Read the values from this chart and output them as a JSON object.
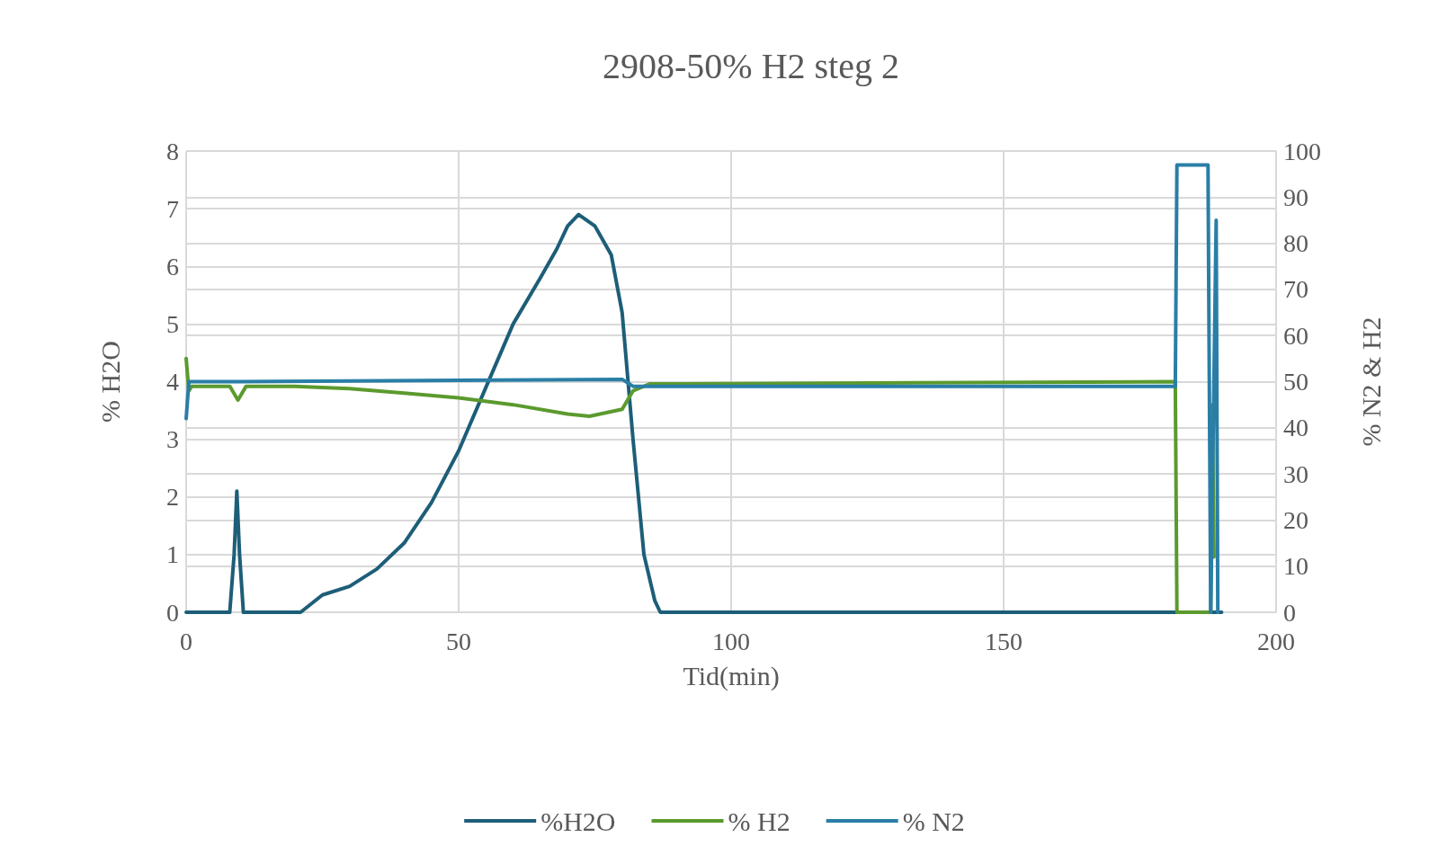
{
  "chart_data": {
    "type": "line",
    "title": "2908-50% H2 steg 2",
    "xlabel": "Tid(min)",
    "ylabel": "% H2O",
    "y2label": "% N2 & H2",
    "xlim": [
      0,
      200
    ],
    "xticks": [
      0,
      50,
      100,
      150,
      200
    ],
    "ylim": [
      0,
      8
    ],
    "yticks": [
      0,
      1,
      2,
      3,
      4,
      5,
      6,
      7,
      8
    ],
    "y2lim": [
      0,
      100
    ],
    "y2ticks": [
      0,
      10,
      20,
      30,
      40,
      50,
      60,
      70,
      80,
      90,
      100
    ],
    "grid": true,
    "legend": "bottom",
    "marker": "none",
    "line_style": "solid",
    "series": [
      {
        "name": "%H2O",
        "color": "#1d5e78",
        "x": [
          0,
          8,
          8.8,
          9.3,
          9.8,
          10.5,
          21,
          25,
          30,
          35,
          40,
          45,
          50,
          55,
          60,
          65,
          68,
          70,
          72,
          75,
          78,
          80,
          82,
          84,
          86,
          87,
          190
        ],
        "values": [
          0,
          0,
          1,
          2.1,
          1,
          0,
          0,
          0.3,
          0.45,
          0.75,
          1.2,
          1.9,
          2.8,
          3.9,
          5.0,
          5.8,
          6.3,
          6.7,
          6.9,
          6.7,
          6.2,
          5.2,
          3.0,
          1.0,
          0.2,
          0,
          0
        ]
      },
      {
        "name": "% H2",
        "color": "#5b9a2e",
        "axis": "y2",
        "x": [
          0,
          0.5,
          1,
          8,
          9.5,
          11,
          20,
          30,
          40,
          50,
          60,
          70,
          74,
          80,
          82,
          85,
          181.5,
          181.8,
          188,
          188.3,
          188.6
        ],
        "values": [
          55,
          48,
          49,
          49,
          46,
          49,
          49,
          48.5,
          47.5,
          46.5,
          45,
          43,
          42.5,
          44,
          48,
          49.5,
          50,
          0,
          0,
          45,
          12
        ]
      },
      {
        "name": "% N2",
        "color": "#2a7ea6",
        "axis": "y2",
        "x": [
          0,
          0.5,
          10,
          80,
          82,
          181.5,
          181.8,
          187.5,
          188,
          189,
          189.3
        ],
        "values": [
          42,
          50,
          50,
          50.5,
          49,
          49,
          97,
          97,
          0,
          85,
          0
        ]
      }
    ]
  }
}
